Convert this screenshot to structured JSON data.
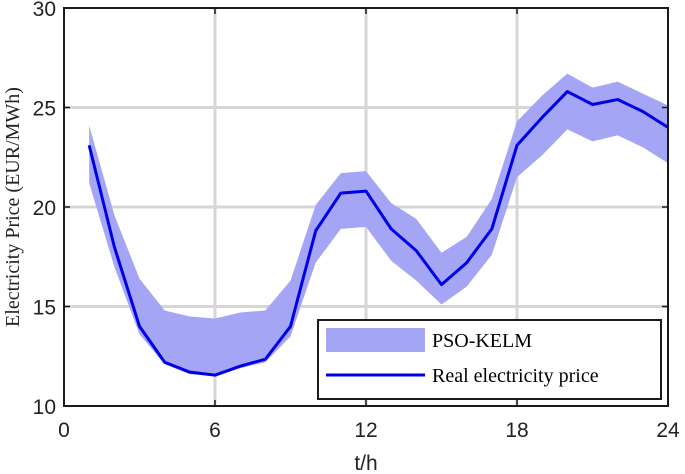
{
  "chart_data": {
    "type": "line",
    "xlabel": "t/h",
    "ylabel": "Electricity Price (EUR/MWh)",
    "xlim": [
      0,
      24
    ],
    "ylim": [
      10,
      30
    ],
    "xticks": [
      0,
      6,
      12,
      18,
      24
    ],
    "yticks": [
      10,
      15,
      20,
      25,
      30
    ],
    "grid": true,
    "legend": "bottom-right",
    "x": [
      1,
      2,
      3,
      4,
      5,
      6,
      7,
      8,
      9,
      10,
      11,
      12,
      13,
      14,
      15,
      16,
      17,
      18,
      19,
      20,
      21,
      22,
      23,
      24
    ],
    "series": [
      {
        "name": "PSO-KELM",
        "kind": "band",
        "color": "#a5a5f5",
        "lower": [
          21.2,
          17.0,
          13.6,
          12.1,
          11.6,
          11.5,
          11.9,
          12.2,
          13.5,
          17.2,
          18.9,
          19.0,
          17.3,
          16.3,
          15.1,
          16.0,
          17.6,
          21.5,
          22.6,
          23.9,
          23.3,
          23.6,
          23.0,
          22.2
        ],
        "upper": [
          24.1,
          19.6,
          16.4,
          14.8,
          14.5,
          14.4,
          14.7,
          14.8,
          16.3,
          20.1,
          21.7,
          21.8,
          20.2,
          19.4,
          17.7,
          18.5,
          20.4,
          24.3,
          25.6,
          26.7,
          26.0,
          26.3,
          25.7,
          25.1
        ]
      },
      {
        "name": "Real electricity price",
        "kind": "line",
        "color": "#0000e6",
        "values": [
          23.1,
          18.0,
          14.0,
          12.2,
          11.7,
          11.55,
          12.0,
          12.35,
          14.0,
          18.8,
          20.7,
          20.8,
          18.9,
          17.8,
          16.1,
          17.2,
          18.9,
          23.1,
          24.5,
          25.8,
          25.15,
          25.4,
          24.8,
          24.0
        ]
      }
    ]
  }
}
